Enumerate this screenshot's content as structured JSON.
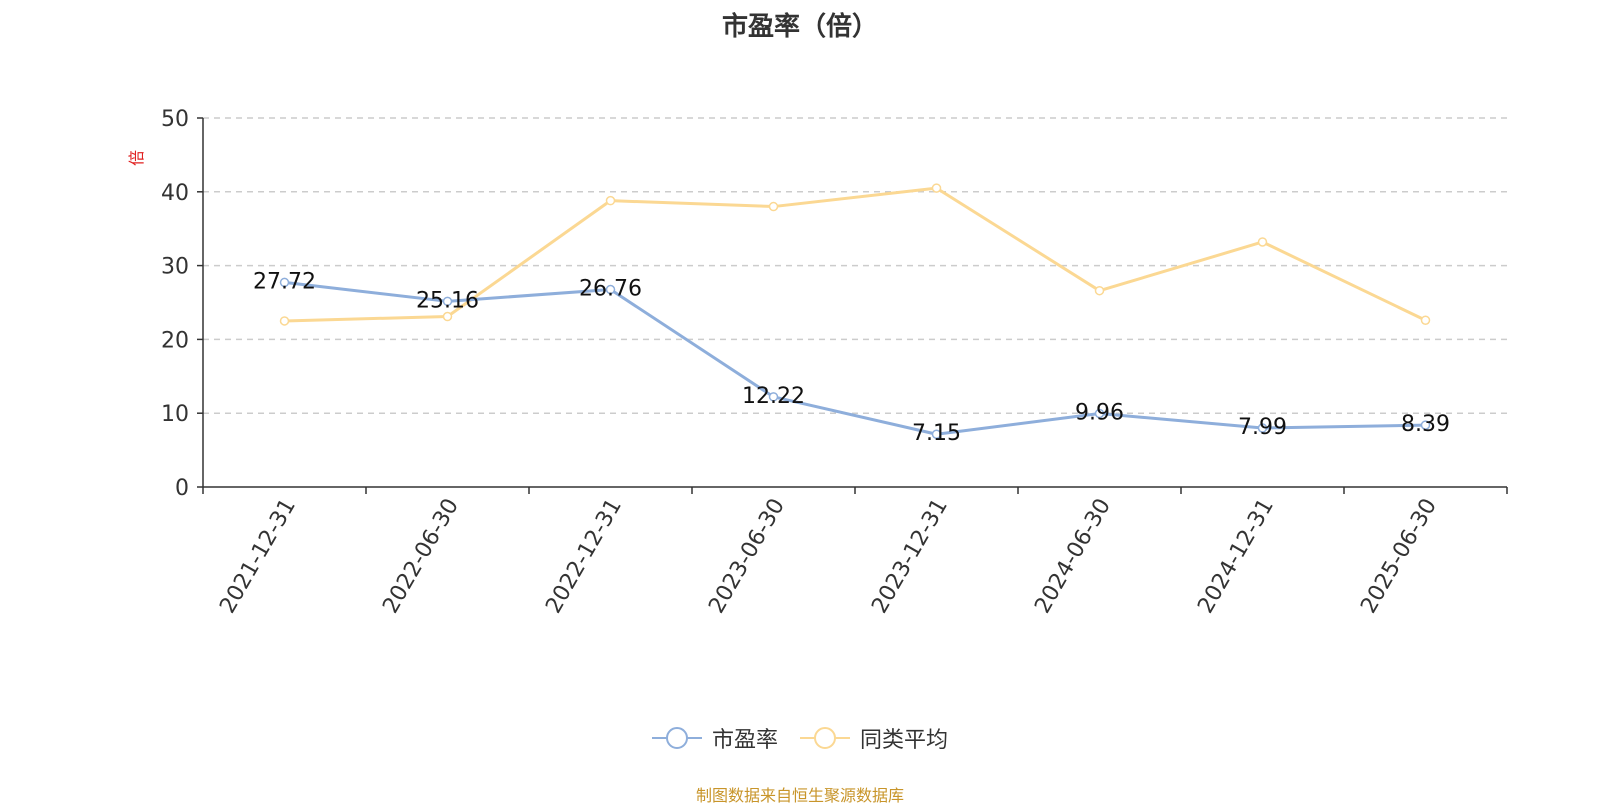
{
  "title": "市盈率（倍）",
  "source_note": "制图数据来自恒生聚源数据库",
  "colors": {
    "pe": "#8eaedb",
    "avg": "#fbd893",
    "unit": "#e02020",
    "source": "#c8952a"
  },
  "chart_data": {
    "type": "line",
    "title": "市盈率（倍）",
    "ylabel": "倍",
    "xlabel": "",
    "ylim": [
      0,
      50
    ],
    "yticks": [
      0,
      10,
      20,
      30,
      40,
      50
    ],
    "grid": true,
    "legend": "bottom-center",
    "categories": [
      "2021-12-31",
      "2022-06-30",
      "2022-12-31",
      "2023-06-30",
      "2023-12-31",
      "2024-06-30",
      "2024-12-31",
      "2025-06-30"
    ],
    "series": [
      {
        "name": "市盈率",
        "values": [
          27.72,
          25.16,
          26.76,
          12.22,
          7.15,
          9.96,
          7.99,
          8.39
        ],
        "labels": [
          "27.72",
          "25.16",
          "26.76",
          "12.22",
          "7.15",
          "9.96",
          "7.99",
          "8.39"
        ],
        "color": "#8eaedb"
      },
      {
        "name": "同类平均",
        "values": [
          22.5,
          23.1,
          38.8,
          38.0,
          40.5,
          26.6,
          33.2,
          22.6
        ],
        "color": "#fbd893"
      }
    ]
  }
}
